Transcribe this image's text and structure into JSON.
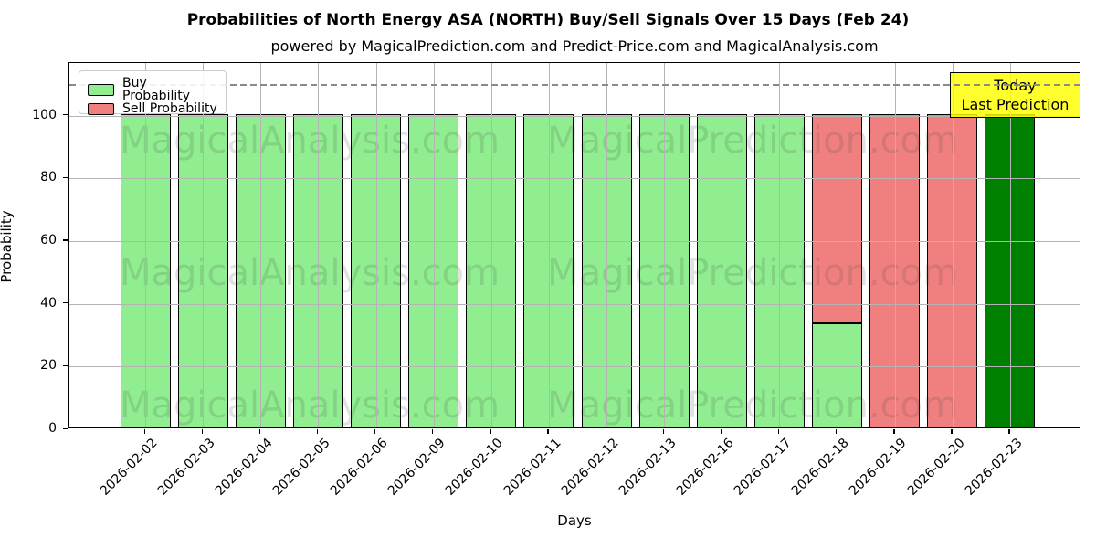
{
  "header": {
    "title": "Probabilities of North Energy ASA (NORTH) Buy/Sell Signals Over 15 Days (Feb 24)",
    "subtitle": "powered by MagicalPrediction.com and Predict-Price.com and MagicalAnalysis.com"
  },
  "axes": {
    "xlabel": "Days",
    "ylabel": "Probability"
  },
  "legend": {
    "items": [
      {
        "label": "Buy Probability",
        "color": "#90EE90"
      },
      {
        "label": "Sell Probability",
        "color": "#F08080"
      }
    ]
  },
  "annotation": {
    "lines": [
      "Today",
      "Last Prediction"
    ],
    "bg_color": "#FFFF00"
  },
  "watermark": {
    "texts": [
      "MagicalAnalysis.com",
      "MagicalPrediction.com"
    ],
    "rows": 3
  },
  "colors": {
    "buy_green": "#90EE90",
    "sell_red": "#F08080",
    "today_dark_green": "#008000",
    "bar_edge": "#000000",
    "grid": "#b4b4b4",
    "reference_line": "#8a8a8a"
  },
  "chart_data": {
    "type": "bar",
    "stacked": true,
    "title": "Probabilities of North Energy ASA (NORTH) Buy/Sell Signals Over 15 Days (Feb 24)",
    "xlabel": "Days",
    "ylabel": "Probability",
    "categories": [
      "2026-02-02",
      "2026-02-03",
      "2026-02-04",
      "2026-02-05",
      "2026-02-06",
      "2026-02-09",
      "2026-02-10",
      "2026-02-11",
      "2026-02-12",
      "2026-02-13",
      "2026-02-16",
      "2026-02-17",
      "2026-02-18",
      "2026-02-19",
      "2026-02-20",
      "2026-02-23"
    ],
    "series": [
      {
        "name": "Buy Probability",
        "color": "#90EE90",
        "values": [
          100,
          100,
          100,
          100,
          100,
          100,
          100,
          100,
          100,
          100,
          100,
          100,
          33.33,
          0,
          0,
          100
        ]
      },
      {
        "name": "Sell Probability",
        "color": "#F08080",
        "values": [
          0,
          0,
          0,
          0,
          0,
          0,
          0,
          0,
          0,
          0,
          0,
          0,
          66.67,
          100,
          100,
          0
        ]
      }
    ],
    "special_bar": {
      "index": 15,
      "buy_color": "#008000",
      "label": "Today / Last Prediction"
    },
    "yticks": [
      0,
      20,
      40,
      60,
      80,
      100
    ],
    "ylim": [
      0,
      116.7
    ],
    "reference_line": {
      "y": 110,
      "style": "dashed"
    },
    "grid": true,
    "legend_position": "upper-left"
  }
}
